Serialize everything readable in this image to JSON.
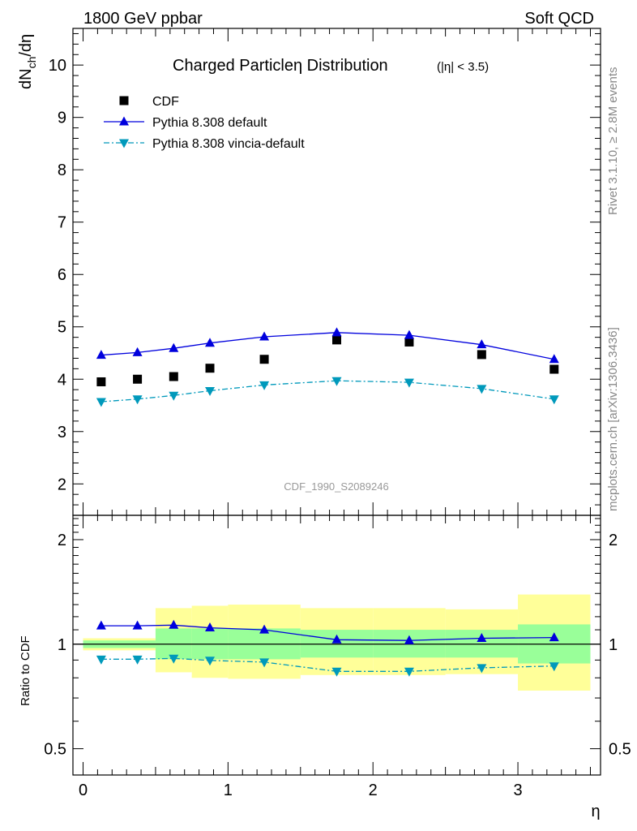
{
  "header": {
    "left": "1800 GeV ppbar",
    "right": "Soft QCD"
  },
  "side_text": {
    "rivet": "Rivet 3.1.10, ≥ 2.8M events",
    "mcplots": "mcplots.cern.ch [arXiv:1306.3436]"
  },
  "chart_data": [
    {
      "type": "scatter",
      "title": "Charged Particleη Distribution",
      "title_note": "(|η| < 3.5)",
      "ylabel": "dN_ch/dη",
      "analysis_id": "CDF_1990_S2089246",
      "xlim": [
        -0.07,
        3.57
      ],
      "ylim": [
        1.4,
        10.7
      ],
      "yticks": [
        2,
        3,
        4,
        5,
        6,
        7,
        8,
        9,
        10
      ],
      "series": [
        {
          "name": "CDF",
          "style": "square",
          "color": "#000000",
          "x": [
            0.125,
            0.375,
            0.625,
            0.875,
            1.25,
            1.75,
            2.25,
            2.75,
            3.25
          ],
          "y": [
            3.95,
            4.0,
            4.05,
            4.21,
            4.38,
            4.75,
            4.71,
            4.47,
            4.19
          ]
        },
        {
          "name": "Pythia 8.308 default",
          "style": "line-triangle-up",
          "color": "#0000dd",
          "x": [
            0.125,
            0.375,
            0.625,
            0.875,
            1.25,
            1.75,
            2.25,
            2.75,
            3.25
          ],
          "y": [
            4.46,
            4.51,
            4.59,
            4.69,
            4.81,
            4.89,
            4.84,
            4.66,
            4.38
          ]
        },
        {
          "name": "Pythia 8.308 vincia-default",
          "style": "dashdot-triangle-down",
          "color": "#0099bb",
          "x": [
            0.125,
            0.375,
            0.625,
            0.875,
            1.25,
            1.75,
            2.25,
            2.75,
            3.25
          ],
          "y": [
            3.57,
            3.62,
            3.69,
            3.78,
            3.89,
            3.97,
            3.94,
            3.82,
            3.62
          ]
        }
      ]
    },
    {
      "type": "line",
      "ylabel": "Ratio to CDF",
      "xlabel": "η",
      "xlim": [
        -0.07,
        3.57
      ],
      "ylim": [
        0.42,
        2.35
      ],
      "yscale": "log",
      "yticks": [
        0.5,
        1,
        2
      ],
      "xticks": [
        0,
        1,
        2,
        3
      ],
      "bands": {
        "green_color": "#99ff99",
        "yellow_color": "#ffff99",
        "bins": [
          {
            "lo": 0.0,
            "hi": 0.5,
            "green": [
              0.975,
              1.025
            ],
            "yellow": [
              0.96,
              1.04
            ]
          },
          {
            "lo": 0.5,
            "hi": 0.75,
            "green": [
              0.905,
              1.11
            ],
            "yellow": [
              0.83,
              1.27
            ]
          },
          {
            "lo": 0.75,
            "hi": 1.0,
            "green": [
              0.905,
              1.11
            ],
            "yellow": [
              0.8,
              1.29
            ]
          },
          {
            "lo": 1.0,
            "hi": 1.5,
            "green": [
              0.905,
              1.11
            ],
            "yellow": [
              0.795,
              1.3
            ]
          },
          {
            "lo": 1.5,
            "hi": 2.0,
            "green": [
              0.915,
              1.1
            ],
            "yellow": [
              0.815,
              1.27
            ]
          },
          {
            "lo": 2.0,
            "hi": 2.5,
            "green": [
              0.915,
              1.1
            ],
            "yellow": [
              0.815,
              1.27
            ]
          },
          {
            "lo": 2.5,
            "hi": 3.0,
            "green": [
              0.915,
              1.1
            ],
            "yellow": [
              0.82,
              1.26
            ]
          },
          {
            "lo": 3.0,
            "hi": 3.5,
            "green": [
              0.88,
              1.14
            ],
            "yellow": [
              0.735,
              1.39
            ]
          }
        ]
      },
      "reference_line": 1,
      "series": [
        {
          "name": "Pythia 8.308 default",
          "style": "line-triangle-up",
          "color": "#0000dd",
          "x": [
            0.125,
            0.375,
            0.625,
            0.875,
            1.25,
            1.75,
            2.25,
            2.75,
            3.25
          ],
          "y": [
            1.13,
            1.13,
            1.135,
            1.115,
            1.1,
            1.03,
            1.025,
            1.04,
            1.045
          ]
        },
        {
          "name": "Pythia 8.308 vincia-default",
          "style": "dashdot-triangle-down",
          "color": "#0099bb",
          "x": [
            0.125,
            0.375,
            0.625,
            0.875,
            1.25,
            1.75,
            2.25,
            2.75,
            3.25
          ],
          "y": [
            0.905,
            0.905,
            0.91,
            0.898,
            0.888,
            0.835,
            0.835,
            0.855,
            0.865
          ]
        }
      ]
    }
  ]
}
